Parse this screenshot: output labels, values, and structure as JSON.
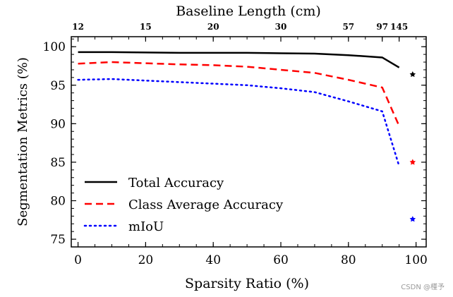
{
  "chart_data": {
    "type": "line",
    "title": "",
    "xlabel": "Sparsity Ratio (%)",
    "ylabel": "Segmentation Metrics (%)",
    "top_xlabel": "Baseline Length (cm)",
    "xlim": [
      -2,
      103
    ],
    "ylim": [
      74,
      101.3
    ],
    "xticks": [
      0,
      20,
      40,
      60,
      80,
      100
    ],
    "yticks": [
      75,
      80,
      85,
      90,
      95,
      100
    ],
    "top_ticks": [
      {
        "x": 0,
        "label": "12"
      },
      {
        "x": 20,
        "label": "15"
      },
      {
        "x": 40,
        "label": "20"
      },
      {
        "x": 60,
        "label": "30"
      },
      {
        "x": 80,
        "label": "57"
      },
      {
        "x": 90,
        "label": "97"
      },
      {
        "x": 95,
        "label": "145"
      }
    ],
    "legend_position": "bottom-left",
    "grid": false,
    "series": [
      {
        "name": "Total Accuracy",
        "color": "#000000",
        "style": "solid",
        "x": [
          0,
          10,
          20,
          30,
          40,
          50,
          60,
          70,
          80,
          90,
          95
        ],
        "y": [
          99.3,
          99.3,
          99.25,
          99.2,
          99.2,
          99.2,
          99.15,
          99.1,
          98.9,
          98.6,
          97.3
        ],
        "marker": {
          "x": 99,
          "y": 96.4
        }
      },
      {
        "name": "Class Average Accuracy",
        "color": "#ff0000",
        "style": "dashed",
        "x": [
          0,
          10,
          20,
          30,
          40,
          50,
          60,
          70,
          80,
          90,
          95
        ],
        "y": [
          97.8,
          98.0,
          97.85,
          97.7,
          97.6,
          97.4,
          97.0,
          96.6,
          95.7,
          94.7,
          89.7
        ],
        "marker": {
          "x": 99,
          "y": 85.0
        }
      },
      {
        "name": "mIoU",
        "color": "#0000ff",
        "style": "dotted",
        "x": [
          0,
          10,
          20,
          30,
          40,
          50,
          60,
          70,
          80,
          90,
          95
        ],
        "y": [
          95.7,
          95.8,
          95.6,
          95.4,
          95.2,
          95.0,
          94.6,
          94.1,
          92.9,
          91.6,
          84.5
        ],
        "marker": {
          "x": 99,
          "y": 77.6
        }
      }
    ]
  },
  "watermark": "CSDN @槿予"
}
